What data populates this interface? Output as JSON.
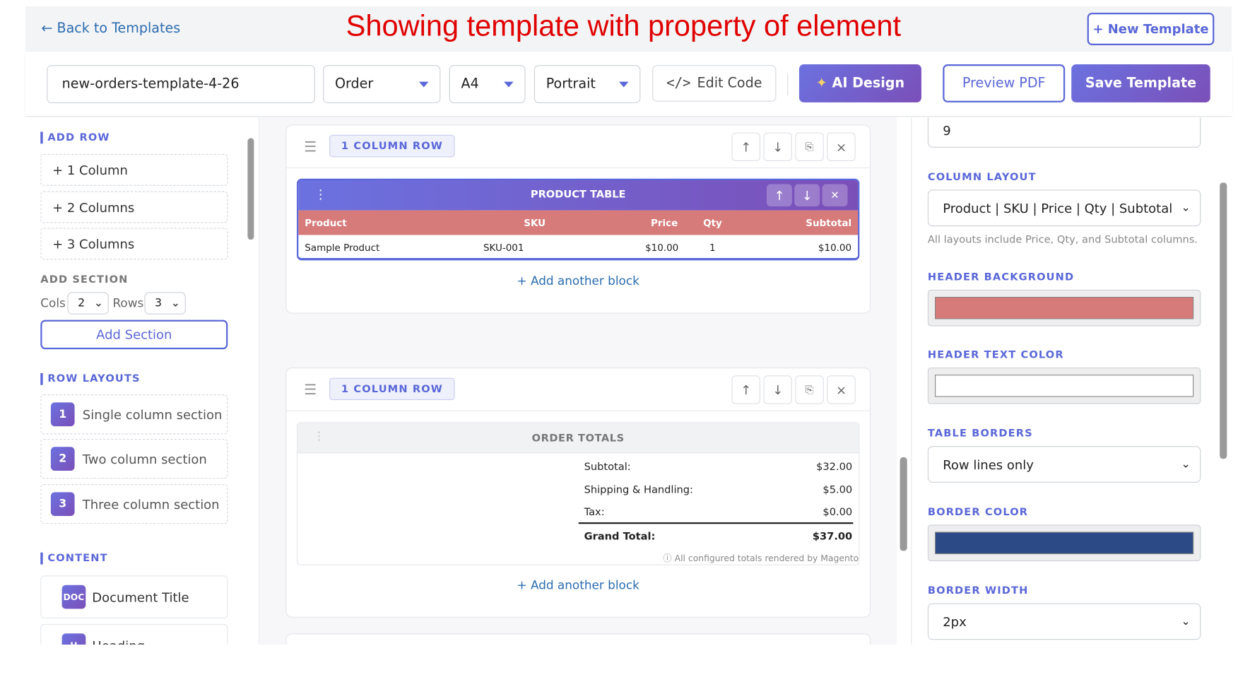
{
  "header": {
    "back": "← Back to Templates",
    "annotation": "Showing template with property of element",
    "new_template": "+ New Template"
  },
  "toolbar": {
    "template_name": "new-orders-template-4-26",
    "entity": "Order",
    "page_size": "A4",
    "orientation": "Portrait",
    "edit_code": "Edit Code",
    "ai_design": "AI Design",
    "preview": "Preview PDF",
    "save": "Save Template"
  },
  "sidebar": {
    "add_row": {
      "title": "ADD ROW",
      "buttons": [
        "+ 1 Column",
        "+ 2 Columns",
        "+ 3 Columns"
      ]
    },
    "add_section": {
      "title": "ADD SECTION",
      "cols_label": "Cols",
      "cols": "2",
      "rows_label": "Rows",
      "rows": "3",
      "button": "Add Section"
    },
    "row_layouts": {
      "title": "ROW LAYOUTS",
      "items": [
        {
          "num": "1",
          "label": "Single column section"
        },
        {
          "num": "2",
          "label": "Two column section"
        },
        {
          "num": "3",
          "label": "Three column section"
        }
      ]
    },
    "content": {
      "title": "CONTENT",
      "items": [
        {
          "icon": "DOC",
          "label": "Document Title"
        },
        {
          "icon": "H",
          "label": "Heading"
        }
      ]
    }
  },
  "canvas": {
    "rows": [
      {
        "label": "1 COLUMN ROW",
        "add_block": "+ Add another block"
      },
      {
        "label": "1 COLUMN ROW",
        "add_block": "+ Add another block"
      }
    ],
    "product_table": {
      "title": "PRODUCT TABLE",
      "headers": [
        "Product",
        "SKU",
        "Price",
        "Qty",
        "Subtotal"
      ],
      "rows": [
        [
          "Sample Product",
          "SKU-001",
          "$10.00",
          "1",
          "$10.00"
        ]
      ]
    },
    "order_totals": {
      "title": "ORDER TOTALS",
      "lines": [
        {
          "label": "Subtotal:",
          "value": "$32.00"
        },
        {
          "label": "Shipping & Handling:",
          "value": "$5.00"
        },
        {
          "label": "Tax:",
          "value": "$0.00"
        }
      ],
      "grand": {
        "label": "Grand Total:",
        "value": "$37.00"
      },
      "note": "All configured totals rendered by Magento"
    }
  },
  "properties": {
    "top_value": "9",
    "column_layout": {
      "label": "COLUMN LAYOUT",
      "value": "Product | SKU | Price | Qty | Subtotal",
      "hint": "All layouts include Price, Qty, and Subtotal columns."
    },
    "header_background": {
      "label": "HEADER BACKGROUND"
    },
    "header_text_color": {
      "label": "HEADER TEXT COLOR"
    },
    "table_borders": {
      "label": "TABLE BORDERS",
      "value": "Row lines only"
    },
    "border_color": {
      "label": "BORDER COLOR"
    },
    "border_width": {
      "label": "BORDER WIDTH",
      "value": "2px"
    }
  }
}
